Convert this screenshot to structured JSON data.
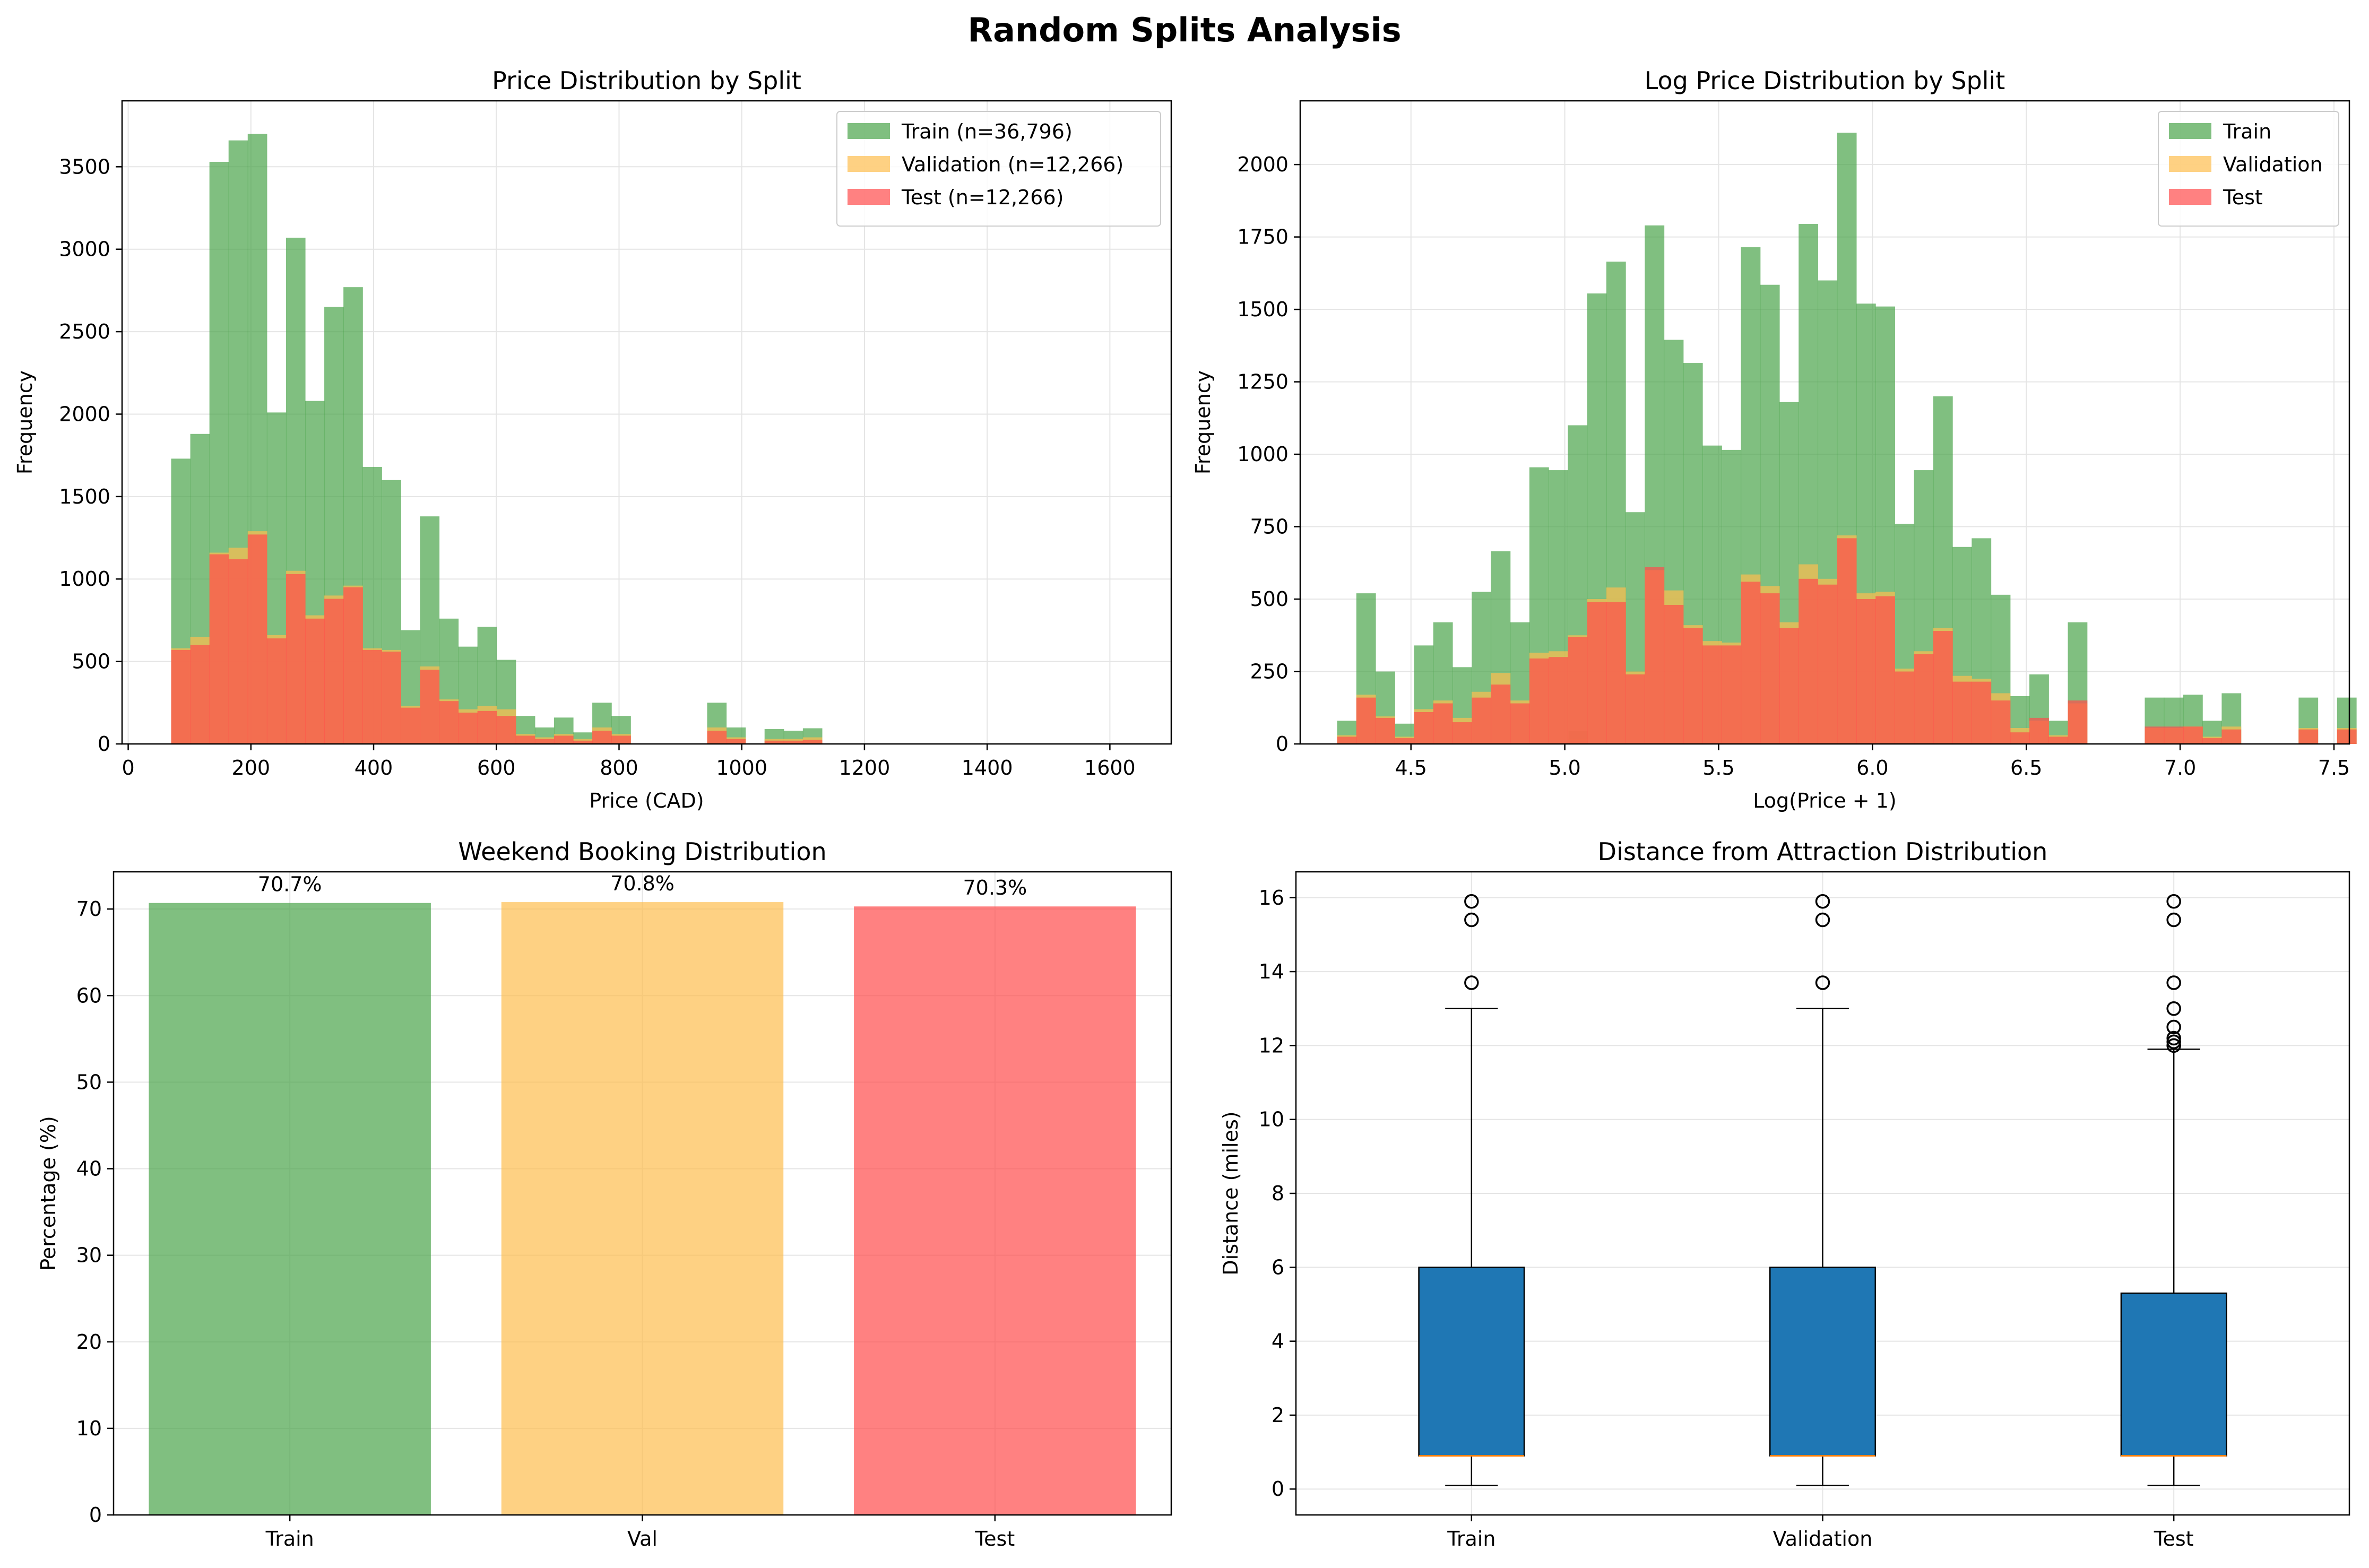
{
  "figure_title": "Random Splits Analysis",
  "colors": {
    "train": "#4aa44a",
    "validation": "#fdbd4f",
    "test": "#ff4c4c",
    "overlap_val_test": "#ee3a0a",
    "overlap_train_val_test": "#ec2c0c",
    "box": "#1f77b4",
    "median": "#ff7f0e",
    "grid": "#e5e5e5"
  },
  "chart_data": [
    {
      "type": "histogram",
      "title": "Price Distribution by Split",
      "xlabel": "Price (CAD)",
      "ylabel": "Frequency",
      "xlim": [
        -10,
        1700
      ],
      "ylim": [
        0,
        3900
      ],
      "xticks": [
        0,
        200,
        400,
        600,
        800,
        1000,
        1200,
        1400,
        1600
      ],
      "yticks": [
        0,
        500,
        1000,
        1500,
        2000,
        2500,
        3000,
        3500
      ],
      "bin_start": 70,
      "bin_width": 31.2,
      "legend_position": "top-right",
      "series": [
        {
          "name": "Train (n=36,796)",
          "key": "train",
          "values": [
            1730,
            1880,
            3530,
            3660,
            3700,
            2010,
            3070,
            2080,
            2650,
            2770,
            1680,
            1600,
            690,
            1380,
            760,
            590,
            710,
            510,
            170,
            100,
            160,
            70,
            250,
            170,
            0,
            0,
            0,
            0,
            250,
            100,
            0,
            90,
            80,
            95,
            0,
            0,
            0,
            0,
            0,
            0,
            0,
            0,
            0,
            0,
            0,
            0,
            0,
            0,
            0,
            0,
            0,
            0,
            0,
            0,
            0,
            0,
            0,
            0,
            0,
            0,
            0,
            0,
            0,
            0,
            0,
            0,
            0,
            0,
            0,
            0,
            0,
            0,
            0,
            80
          ]
        },
        {
          "name": "Validation (n=12,266)",
          "key": "validation",
          "values": [
            580,
            650,
            1160,
            1190,
            1290,
            660,
            1050,
            780,
            900,
            960,
            580,
            570,
            230,
            470,
            270,
            210,
            230,
            210,
            60,
            40,
            60,
            30,
            100,
            60,
            0,
            0,
            0,
            0,
            100,
            40,
            0,
            30,
            30,
            40,
            0,
            0,
            0,
            0,
            0,
            0,
            0,
            0,
            0,
            0,
            0,
            0,
            0,
            0,
            0,
            0,
            0,
            0,
            0,
            0,
            0,
            0,
            0,
            0,
            0,
            0,
            0,
            0,
            0,
            0,
            0,
            0,
            0,
            0,
            0,
            0,
            0,
            0,
            0,
            30
          ]
        },
        {
          "name": "Test (n=12,266)",
          "key": "test",
          "values": [
            570,
            600,
            1150,
            1120,
            1270,
            640,
            1030,
            760,
            880,
            950,
            570,
            560,
            220,
            450,
            260,
            190,
            200,
            170,
            50,
            30,
            50,
            20,
            80,
            50,
            0,
            0,
            0,
            0,
            80,
            30,
            0,
            20,
            20,
            25,
            0,
            0,
            0,
            0,
            0,
            0,
            0,
            0,
            0,
            0,
            0,
            0,
            0,
            0,
            0,
            0,
            0,
            0,
            0,
            0,
            0,
            0,
            0,
            0,
            0,
            0,
            0,
            0,
            0,
            0,
            0,
            0,
            0,
            0,
            0,
            0,
            0,
            0,
            0,
            20
          ]
        }
      ]
    },
    {
      "type": "histogram",
      "title": "Log Price Distribution by Split",
      "xlabel": "Log(Price + 1)",
      "ylabel": "Frequency",
      "xlim": [
        4.14,
        7.55
      ],
      "ylim": [
        0,
        2220
      ],
      "xticks": [
        4.5,
        5.0,
        5.5,
        6.0,
        6.5,
        7.0,
        7.5
      ],
      "xtick_labels": [
        "4.5",
        "5.0",
        "5.5",
        "6.0",
        "6.5",
        "7.0",
        "7.5"
      ],
      "yticks": [
        0,
        250,
        500,
        750,
        1000,
        1250,
        1500,
        1750,
        2000
      ],
      "bin_start": 4.26,
      "bin_width": 0.0625,
      "legend_position": "top-right",
      "series": [
        {
          "name": "Train",
          "key": "train",
          "values": [
            80,
            520,
            250,
            70,
            340,
            420,
            265,
            525,
            665,
            420,
            955,
            945,
            1100,
            1555,
            1665,
            800,
            1790,
            1395,
            1315,
            1030,
            1015,
            1715,
            1585,
            1180,
            1795,
            1600,
            2110,
            1520,
            1510,
            760,
            945,
            1200,
            680,
            710,
            515,
            165,
            240,
            80,
            420,
            0,
            0,
            0,
            160,
            160,
            170,
            80,
            175,
            0,
            0,
            0,
            160,
            0,
            160,
            0,
            0,
            0,
            75
          ]
        },
        {
          "name": "Validation",
          "key": "validation",
          "values": [
            30,
            170,
            95,
            25,
            120,
            150,
            90,
            180,
            245,
            150,
            315,
            320,
            375,
            500,
            540,
            250,
            600,
            530,
            410,
            355,
            350,
            585,
            545,
            420,
            620,
            570,
            720,
            520,
            525,
            260,
            320,
            400,
            235,
            225,
            175,
            55,
            80,
            30,
            140,
            0,
            0,
            0,
            55,
            55,
            60,
            25,
            60,
            0,
            0,
            0,
            55,
            0,
            55,
            0,
            0,
            0,
            25
          ]
        },
        {
          "name": "Test",
          "key": "test",
          "values": [
            25,
            160,
            90,
            20,
            110,
            140,
            75,
            160,
            205,
            140,
            295,
            300,
            370,
            490,
            490,
            240,
            610,
            480,
            400,
            340,
            340,
            560,
            520,
            400,
            570,
            550,
            710,
            500,
            510,
            250,
            310,
            390,
            215,
            215,
            150,
            40,
            90,
            25,
            150,
            0,
            0,
            0,
            60,
            60,
            60,
            20,
            50,
            0,
            0,
            0,
            50,
            0,
            50,
            0,
            0,
            0,
            20
          ]
        }
      ]
    },
    {
      "type": "bar",
      "title": "Weekend Booking Distribution",
      "ylabel": "Percentage (%)",
      "categories": [
        "Train",
        "Val",
        "Test"
      ],
      "values": [
        70.7,
        70.8,
        70.3
      ],
      "value_labels": [
        "70.7%",
        "70.8%",
        "70.3%"
      ],
      "ylim": [
        0,
        74.3
      ],
      "yticks": [
        0,
        10,
        20,
        30,
        40,
        50,
        60,
        70
      ],
      "bar_colors": [
        "train",
        "validation",
        "test"
      ]
    },
    {
      "type": "box",
      "title": "Distance from Attraction Distribution",
      "ylabel": "Distance (miles)",
      "categories": [
        "Train",
        "Validation",
        "Test"
      ],
      "ylim": [
        -0.7,
        16.7
      ],
      "yticks": [
        0,
        2,
        4,
        6,
        8,
        10,
        12,
        14,
        16
      ],
      "boxes": [
        {
          "whisker_low": 0.1,
          "q1": 0.9,
          "median": 0.9,
          "q3": 6.0,
          "whisker_high": 13.0,
          "outliers": [
            13.7,
            15.4,
            15.9
          ]
        },
        {
          "whisker_low": 0.1,
          "q1": 0.9,
          "median": 0.9,
          "q3": 6.0,
          "whisker_high": 13.0,
          "outliers": [
            13.7,
            15.4,
            15.9
          ]
        },
        {
          "whisker_low": 0.1,
          "q1": 0.9,
          "median": 0.9,
          "q3": 5.3,
          "whisker_high": 11.9,
          "outliers": [
            12.0,
            12.1,
            12.2,
            12.5,
            13.0,
            13.7,
            15.4,
            15.9
          ]
        }
      ]
    }
  ]
}
